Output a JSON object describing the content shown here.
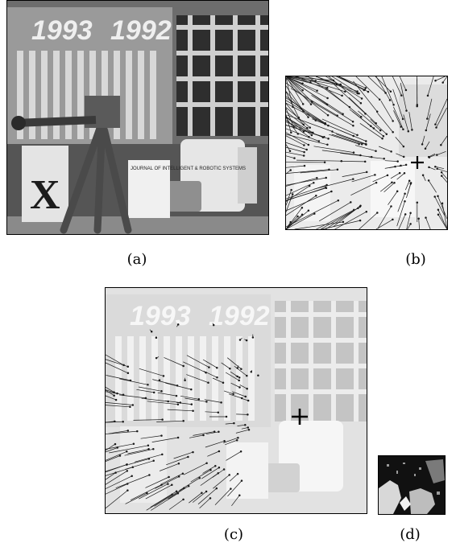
{
  "captions": {
    "a": "(a)",
    "b": "(b)",
    "c": "(c)",
    "d": "(d)"
  },
  "scene_text": {
    "year_left": "1993",
    "year_right": "1992",
    "book_spine_letter": "X",
    "journal_title": "JOURNAL OF INTELLIGENT & ROBOTIC SYSTEMS"
  },
  "colors": {
    "frame": "#000000",
    "background": "#ffffff",
    "scene_dark": "#3a3a3a",
    "scene_light": "#e6e6e6",
    "vector": "#1a1a1a"
  },
  "icons": {
    "focus_of_expansion": "plus-marker"
  }
}
